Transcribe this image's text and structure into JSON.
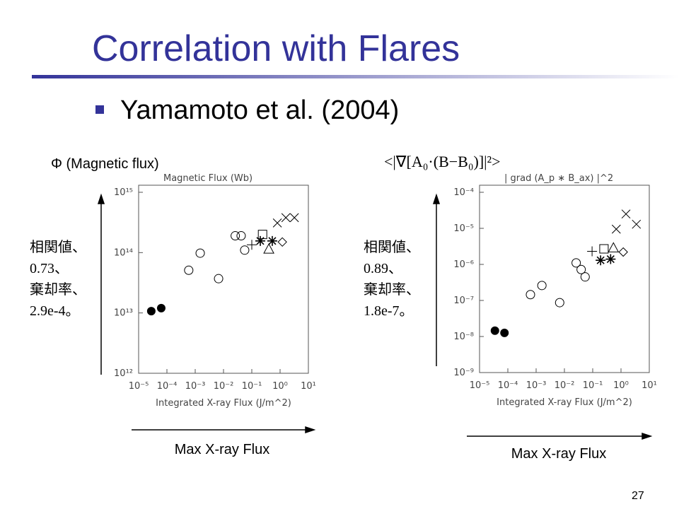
{
  "slide": {
    "title": "Correlation with Flares",
    "bullet": "Yamamoto et al. (2004)",
    "left_heading": "Φ (Magnetic flux)",
    "right_heading": "<|∇[A₀·(B−B₀)]|²>",
    "left_note": [
      "相関値、",
      "0.73、",
      "棄却率、",
      "2.9e-4。"
    ],
    "right_note": [
      "相関値、",
      "0.89、",
      "棄却率、",
      "1.8e-7。"
    ],
    "left_arrow_label": "Max X-ray Flux",
    "right_arrow_label": "Max X-ray Flux",
    "page_number": "27"
  },
  "chart_data": [
    {
      "type": "scatter",
      "title": "Magnetic Flux (Wb)",
      "x_label": "Integrated X-ray Flux (J/m^2)",
      "xscale": "log",
      "yscale": "log",
      "xlim": [
        1e-05,
        10
      ],
      "ylim": [
        1000000000000.0,
        1000000000000000.0
      ],
      "xticks": [
        {
          "value": 1e-05,
          "label": "10⁻⁵"
        },
        {
          "value": 0.0001,
          "label": "10⁻⁴"
        },
        {
          "value": 0.001,
          "label": "10⁻³"
        },
        {
          "value": 0.01,
          "label": "10⁻²"
        },
        {
          "value": 0.1,
          "label": "10⁻¹"
        },
        {
          "value": 1,
          "label": "10⁰"
        },
        {
          "value": 10,
          "label": "10¹"
        }
      ],
      "yticks": [
        {
          "value": 1000000000000.0,
          "label": "10¹²"
        },
        {
          "value": 10000000000000.0,
          "label": "10¹³"
        },
        {
          "value": 100000000000000.0,
          "label": "10¹⁴"
        },
        {
          "value": 1000000000000000.0,
          "label": "10¹⁵"
        }
      ],
      "series": [
        {
          "marker": "filled-circle",
          "color": "#000000",
          "x": [
            2.8e-05,
            6.3e-05
          ],
          "values": [
            10700000000000.0,
            12000000000000.0
          ]
        },
        {
          "marker": "circle",
          "color": "#000000",
          "x": [
            0.00059,
            0.0015,
            0.0067,
            0.026,
            0.042,
            0.056
          ],
          "values": [
            51000000000000.0,
            98000000000000.0,
            37000000000000.0,
            190000000000000.0,
            190000000000000.0,
            110000000000000.0
          ]
        },
        {
          "marker": "plus",
          "color": "#000000",
          "x": [
            0.1
          ],
          "values": [
            135000000000000.0
          ]
        },
        {
          "marker": "asterisk",
          "color": "#000000",
          "x": [
            0.2,
            0.53
          ],
          "values": [
            156000000000000.0,
            156000000000000.0
          ]
        },
        {
          "marker": "square",
          "color": "#000000",
          "x": [
            0.24
          ],
          "values": [
            200000000000000.0
          ]
        },
        {
          "marker": "triangle",
          "color": "#000000",
          "x": [
            0.4
          ],
          "values": [
            115000000000000.0
          ]
        },
        {
          "marker": "diamond",
          "color": "#000000",
          "x": [
            1.2
          ],
          "values": [
            150000000000000.0
          ]
        },
        {
          "marker": "cross",
          "color": "#000000",
          "x": [
            0.8,
            1.6,
            3.2
          ],
          "values": [
            310000000000000.0,
            380000000000000.0,
            380000000000000.0
          ]
        }
      ]
    },
    {
      "type": "scatter",
      "title": "| grad (A_p ∗ B_ax) |^2",
      "x_label": "Integrated X-ray Flux (J/m^2)",
      "xscale": "log",
      "yscale": "log",
      "xlim": [
        1e-05,
        10
      ],
      "ylim": [
        1e-09,
        0.0001
      ],
      "xticks": [
        {
          "value": 1e-05,
          "label": "10⁻⁵"
        },
        {
          "value": 0.0001,
          "label": "10⁻⁴"
        },
        {
          "value": 0.001,
          "label": "10⁻³"
        },
        {
          "value": 0.01,
          "label": "10⁻²"
        },
        {
          "value": 0.1,
          "label": "10⁻¹"
        },
        {
          "value": 1,
          "label": "10⁰"
        },
        {
          "value": 10,
          "label": "10¹"
        }
      ],
      "yticks": [
        {
          "value": 1e-09,
          "label": "10⁻⁹"
        },
        {
          "value": 1e-08,
          "label": "10⁻⁸"
        },
        {
          "value": 1e-07,
          "label": "10⁻⁷"
        },
        {
          "value": 1e-06,
          "label": "10⁻⁶"
        },
        {
          "value": 1e-05,
          "label": "10⁻⁵"
        },
        {
          "value": 0.0001,
          "label": "10⁻⁴"
        }
      ],
      "series": [
        {
          "marker": "filled-circle",
          "color": "#000000",
          "x": [
            3.5e-05,
            7.6e-05
          ],
          "values": [
            1.45e-08,
            1.26e-08
          ]
        },
        {
          "marker": "circle",
          "color": "#000000",
          "x": [
            0.00063,
            0.0016,
            0.0068,
            0.026,
            0.039,
            0.054
          ],
          "values": [
            1.45e-07,
            2.6e-07,
            8.7e-08,
            1.1e-06,
            7.2e-07,
            4.5e-07
          ]
        },
        {
          "marker": "plus",
          "color": "#000000",
          "x": [
            0.095
          ],
          "values": [
            2.3e-06
          ]
        },
        {
          "marker": "asterisk",
          "color": "#000000",
          "x": [
            0.19,
            0.43
          ],
          "values": [
            1.3e-06,
            1.4e-06
          ]
        },
        {
          "marker": "square",
          "color": "#000000",
          "x": [
            0.25
          ],
          "values": [
            2.7e-06
          ]
        },
        {
          "marker": "triangle",
          "color": "#000000",
          "x": [
            0.54
          ],
          "values": [
            2.9e-06
          ]
        },
        {
          "marker": "diamond",
          "color": "#000000",
          "x": [
            1.2
          ],
          "values": [
            2.2e-06
          ]
        },
        {
          "marker": "cross",
          "color": "#000000",
          "x": [
            0.68,
            1.5,
            3.5
          ],
          "values": [
            9.5e-06,
            2.5e-05,
            1.3e-05
          ]
        }
      ]
    }
  ]
}
